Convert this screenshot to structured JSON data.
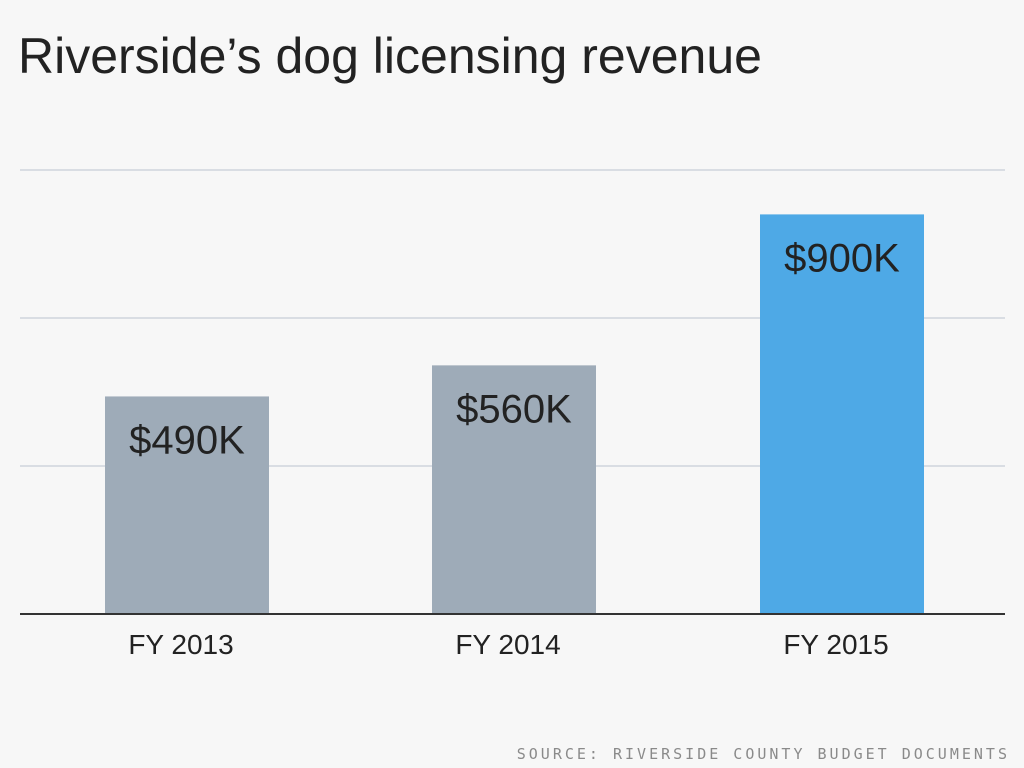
{
  "title": "Riverside’s dog licensing revenue",
  "source": "SOURCE: RIVERSIDE COUNTY BUDGET DOCUMENTS",
  "colors": {
    "background": "#f7f7f7",
    "bar_default": "#9eabb8",
    "bar_highlight": "#4ea9e6",
    "gridline": "#d9dde3",
    "axis": "#333333",
    "text": "#222222"
  },
  "chart_data": {
    "type": "bar",
    "title": "Riverside’s dog licensing revenue",
    "categories": [
      "FY 2013",
      "FY 2014",
      "FY 2015"
    ],
    "values": [
      490,
      560,
      900
    ],
    "value_labels": [
      "$490K",
      "$560K",
      "$900K"
    ],
    "unit": "thousand USD",
    "highlight_index": 2,
    "ylim": [
      0,
      1000
    ],
    "gridlines": [
      0,
      333.3,
      666.7,
      1000
    ],
    "grid": true,
    "legend": "none"
  }
}
